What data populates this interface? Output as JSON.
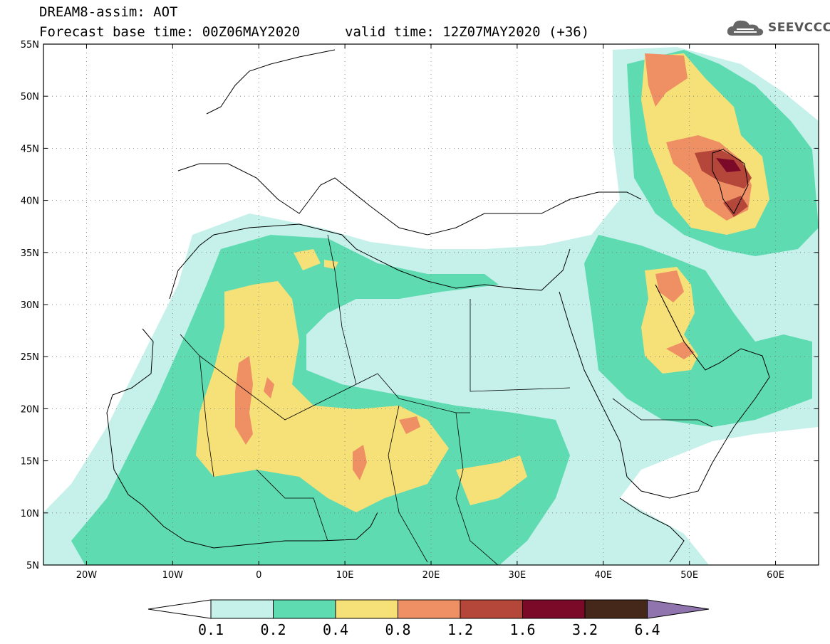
{
  "header": {
    "title": "DREAM8-assim: AOT",
    "base_time": "Forecast base time: 00Z06MAY2020",
    "valid_time": "valid time: 12Z07MAY2020 (+36)"
  },
  "logo": {
    "text": "SEEVCCC",
    "icon": "cloud-icon"
  },
  "map": {
    "lon_range": [
      -25,
      65
    ],
    "lat_range": [
      5,
      55
    ],
    "lat_ticks": [
      {
        "value": 55,
        "label": "55N"
      },
      {
        "value": 50,
        "label": "50N"
      },
      {
        "value": 45,
        "label": "45N"
      },
      {
        "value": 40,
        "label": "40N"
      },
      {
        "value": 35,
        "label": "35N"
      },
      {
        "value": 30,
        "label": "30N"
      },
      {
        "value": 25,
        "label": "25N"
      },
      {
        "value": 20,
        "label": "20N"
      },
      {
        "value": 15,
        "label": "15N"
      },
      {
        "value": 10,
        "label": "10N"
      },
      {
        "value": 5,
        "label": "5N"
      }
    ],
    "lon_ticks": [
      {
        "value": -20,
        "label": "20W"
      },
      {
        "value": -10,
        "label": "10W"
      },
      {
        "value": 0,
        "label": "0"
      },
      {
        "value": 10,
        "label": "10E"
      },
      {
        "value": 20,
        "label": "20E"
      },
      {
        "value": 30,
        "label": "30E"
      },
      {
        "value": 40,
        "label": "40E"
      },
      {
        "value": 50,
        "label": "50E"
      },
      {
        "value": 60,
        "label": "60E"
      }
    ],
    "grid": "dotted"
  },
  "colorbar": {
    "colors": [
      "#c5f1ea",
      "#5edbb0",
      "#f6e078",
      "#ee9064",
      "#b5463a",
      "#7a0a28",
      "#45281a",
      "#8f74ad"
    ],
    "under_color": "#ffffff",
    "labels": [
      "0.1",
      "0.2",
      "0.4",
      "0.8",
      "1.2",
      "1.6",
      "3.2",
      "6.4"
    ]
  }
}
